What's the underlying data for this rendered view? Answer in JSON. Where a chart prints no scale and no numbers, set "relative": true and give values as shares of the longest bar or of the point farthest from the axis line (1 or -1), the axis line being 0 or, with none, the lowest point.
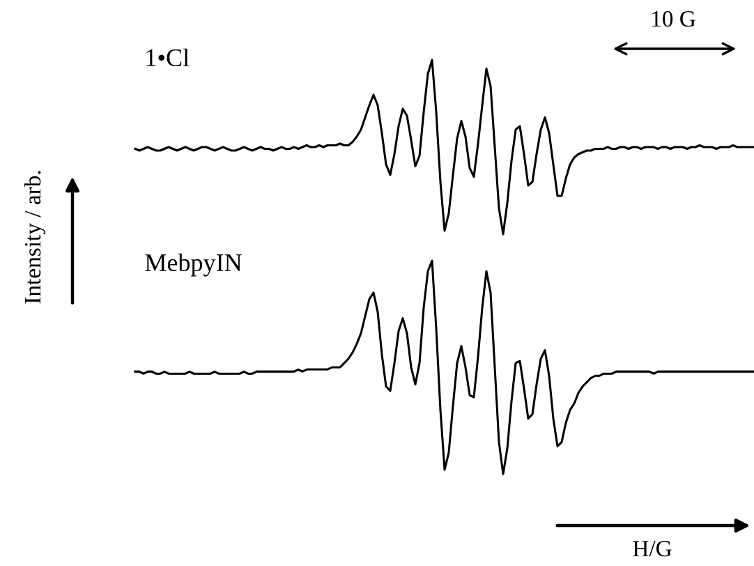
{
  "chart_data": [
    {
      "type": "line",
      "relative": true,
      "ylabel": "Intensity / arb.",
      "annotations": [
        "10 G"
      ],
      "categories": [
        null,
        null,
        null,
        null,
        null,
        null,
        null,
        null,
        null,
        null,
        null,
        null,
        null,
        null,
        null,
        null,
        null,
        null,
        null,
        null,
        null,
        null,
        null,
        null,
        null,
        null,
        null,
        null,
        null,
        null,
        null,
        null,
        null,
        null,
        null,
        null,
        null,
        null,
        null,
        null,
        null,
        null,
        null,
        null,
        null,
        null,
        null,
        null,
        null,
        null,
        null,
        null,
        null,
        null,
        null,
        null,
        null,
        null,
        null,
        null,
        null,
        null,
        null,
        null,
        null,
        null,
        null,
        null,
        null,
        null,
        null,
        null,
        null,
        null,
        null,
        null,
        null,
        null,
        null,
        null,
        null,
        null,
        null,
        null,
        null,
        null,
        null,
        null,
        null,
        null,
        null,
        null,
        null,
        null,
        null,
        null,
        null,
        null,
        null,
        null,
        null,
        null,
        null,
        null,
        null,
        null,
        null,
        null,
        null,
        null,
        null,
        null,
        null,
        null,
        null,
        null,
        null,
        null,
        null,
        null,
        null,
        null,
        null,
        null,
        null,
        null,
        null,
        null,
        null,
        null,
        null,
        null,
        null,
        null,
        null,
        null,
        null,
        null,
        null,
        null,
        null,
        null,
        null,
        null,
        null,
        null,
        null,
        null,
        null
      ],
      "series": [
        {
          "name": "1•Cl",
          "color": "#000000",
          "values": [
            0.49,
            0.48,
            0.49,
            0.5,
            0.49,
            0.48,
            0.48,
            0.49,
            0.5,
            0.49,
            0.48,
            0.49,
            0.5,
            0.49,
            0.48,
            0.49,
            0.5,
            0.5,
            0.49,
            0.48,
            0.49,
            0.5,
            0.49,
            0.48,
            0.48,
            0.49,
            0.5,
            0.49,
            0.48,
            0.49,
            0.5,
            0.49,
            0.49,
            0.48,
            0.49,
            0.5,
            0.49,
            0.49,
            0.5,
            0.49,
            0.5,
            0.51,
            0.5,
            0.5,
            0.51,
            0.5,
            0.51,
            0.51,
            0.51,
            0.52,
            0.51,
            0.51,
            0.53,
            0.56,
            0.6,
            0.67,
            0.74,
            0.8,
            0.74,
            0.58,
            0.4,
            0.34,
            0.46,
            0.62,
            0.72,
            0.68,
            0.54,
            0.39,
            0.45,
            0.7,
            0.92,
            1.0,
            0.7,
            0.3,
            0.02,
            0.12,
            0.34,
            0.55,
            0.65,
            0.56,
            0.38,
            0.33,
            0.52,
            0.74,
            0.95,
            0.85,
            0.5,
            0.15,
            0.0,
            0.18,
            0.42,
            0.6,
            0.62,
            0.46,
            0.28,
            0.3,
            0.46,
            0.6,
            0.67,
            0.58,
            0.4,
            0.22,
            0.22,
            0.32,
            0.4,
            0.44,
            0.46,
            0.47,
            0.48,
            0.48,
            0.49,
            0.49,
            0.49,
            0.5,
            0.49,
            0.49,
            0.5,
            0.5,
            0.49,
            0.5,
            0.5,
            0.49,
            0.5,
            0.5,
            0.5,
            0.49,
            0.5,
            0.5,
            0.49,
            0.5,
            0.5,
            0.5,
            0.49,
            0.5,
            0.5,
            0.51,
            0.5,
            0.5,
            0.5,
            0.49,
            0.5,
            0.5,
            0.5,
            0.51,
            0.5,
            0.5,
            0.5,
            0.5,
            0.5
          ]
        }
      ]
    },
    {
      "type": "line",
      "relative": true,
      "xlabel": "H/G",
      "categories": [
        null,
        null,
        null,
        null,
        null,
        null,
        null,
        null,
        null,
        null,
        null,
        null,
        null,
        null,
        null,
        null,
        null,
        null,
        null,
        null,
        null,
        null,
        null,
        null,
        null,
        null,
        null,
        null,
        null,
        null,
        null,
        null,
        null,
        null,
        null,
        null,
        null,
        null,
        null,
        null,
        null,
        null,
        null,
        null,
        null,
        null,
        null,
        null,
        null,
        null,
        null,
        null,
        null,
        null,
        null,
        null,
        null,
        null,
        null,
        null,
        null,
        null,
        null,
        null,
        null,
        null,
        null,
        null,
        null,
        null,
        null,
        null,
        null,
        null,
        null,
        null,
        null,
        null,
        null,
        null,
        null,
        null,
        null,
        null,
        null,
        null,
        null,
        null,
        null,
        null,
        null,
        null,
        null,
        null,
        null,
        null,
        null,
        null,
        null,
        null,
        null,
        null,
        null,
        null,
        null,
        null,
        null,
        null,
        null,
        null,
        null,
        null,
        null,
        null,
        null,
        null,
        null,
        null,
        null,
        null,
        null,
        null,
        null,
        null,
        null,
        null,
        null,
        null,
        null,
        null,
        null,
        null,
        null,
        null,
        null,
        null,
        null,
        null,
        null,
        null,
        null,
        null,
        null,
        null,
        null,
        null,
        null,
        null,
        null
      ],
      "series": [
        {
          "name": "MebpyIN",
          "color": "#000000",
          "values": [
            0.48,
            0.48,
            0.47,
            0.48,
            0.48,
            0.47,
            0.47,
            0.48,
            0.47,
            0.47,
            0.47,
            0.47,
            0.47,
            0.48,
            0.47,
            0.47,
            0.47,
            0.47,
            0.47,
            0.48,
            0.47,
            0.47,
            0.47,
            0.47,
            0.47,
            0.47,
            0.48,
            0.47,
            0.47,
            0.48,
            0.48,
            0.48,
            0.48,
            0.48,
            0.48,
            0.48,
            0.48,
            0.48,
            0.48,
            0.49,
            0.48,
            0.49,
            0.49,
            0.49,
            0.49,
            0.49,
            0.49,
            0.5,
            0.5,
            0.5,
            0.52,
            0.54,
            0.57,
            0.61,
            0.66,
            0.74,
            0.82,
            0.85,
            0.76,
            0.56,
            0.41,
            0.39,
            0.52,
            0.67,
            0.73,
            0.66,
            0.5,
            0.42,
            0.52,
            0.78,
            0.95,
            1.0,
            0.68,
            0.3,
            0.02,
            0.1,
            0.32,
            0.52,
            0.6,
            0.5,
            0.37,
            0.36,
            0.55,
            0.78,
            0.95,
            0.85,
            0.5,
            0.15,
            0.0,
            0.12,
            0.34,
            0.52,
            0.53,
            0.4,
            0.26,
            0.28,
            0.42,
            0.54,
            0.58,
            0.46,
            0.26,
            0.13,
            0.15,
            0.24,
            0.3,
            0.33,
            0.38,
            0.41,
            0.43,
            0.45,
            0.46,
            0.46,
            0.47,
            0.47,
            0.47,
            0.48,
            0.48,
            0.48,
            0.48,
            0.48,
            0.48,
            0.48,
            0.48,
            0.48,
            0.47,
            0.48,
            0.48,
            0.48,
            0.48,
            0.48,
            0.48,
            0.48,
            0.48,
            0.48,
            0.48,
            0.48,
            0.48,
            0.48,
            0.48,
            0.48,
            0.48,
            0.48,
            0.48,
            0.48,
            0.48,
            0.48,
            0.48,
            0.48,
            0.48
          ]
        }
      ]
    }
  ]
}
